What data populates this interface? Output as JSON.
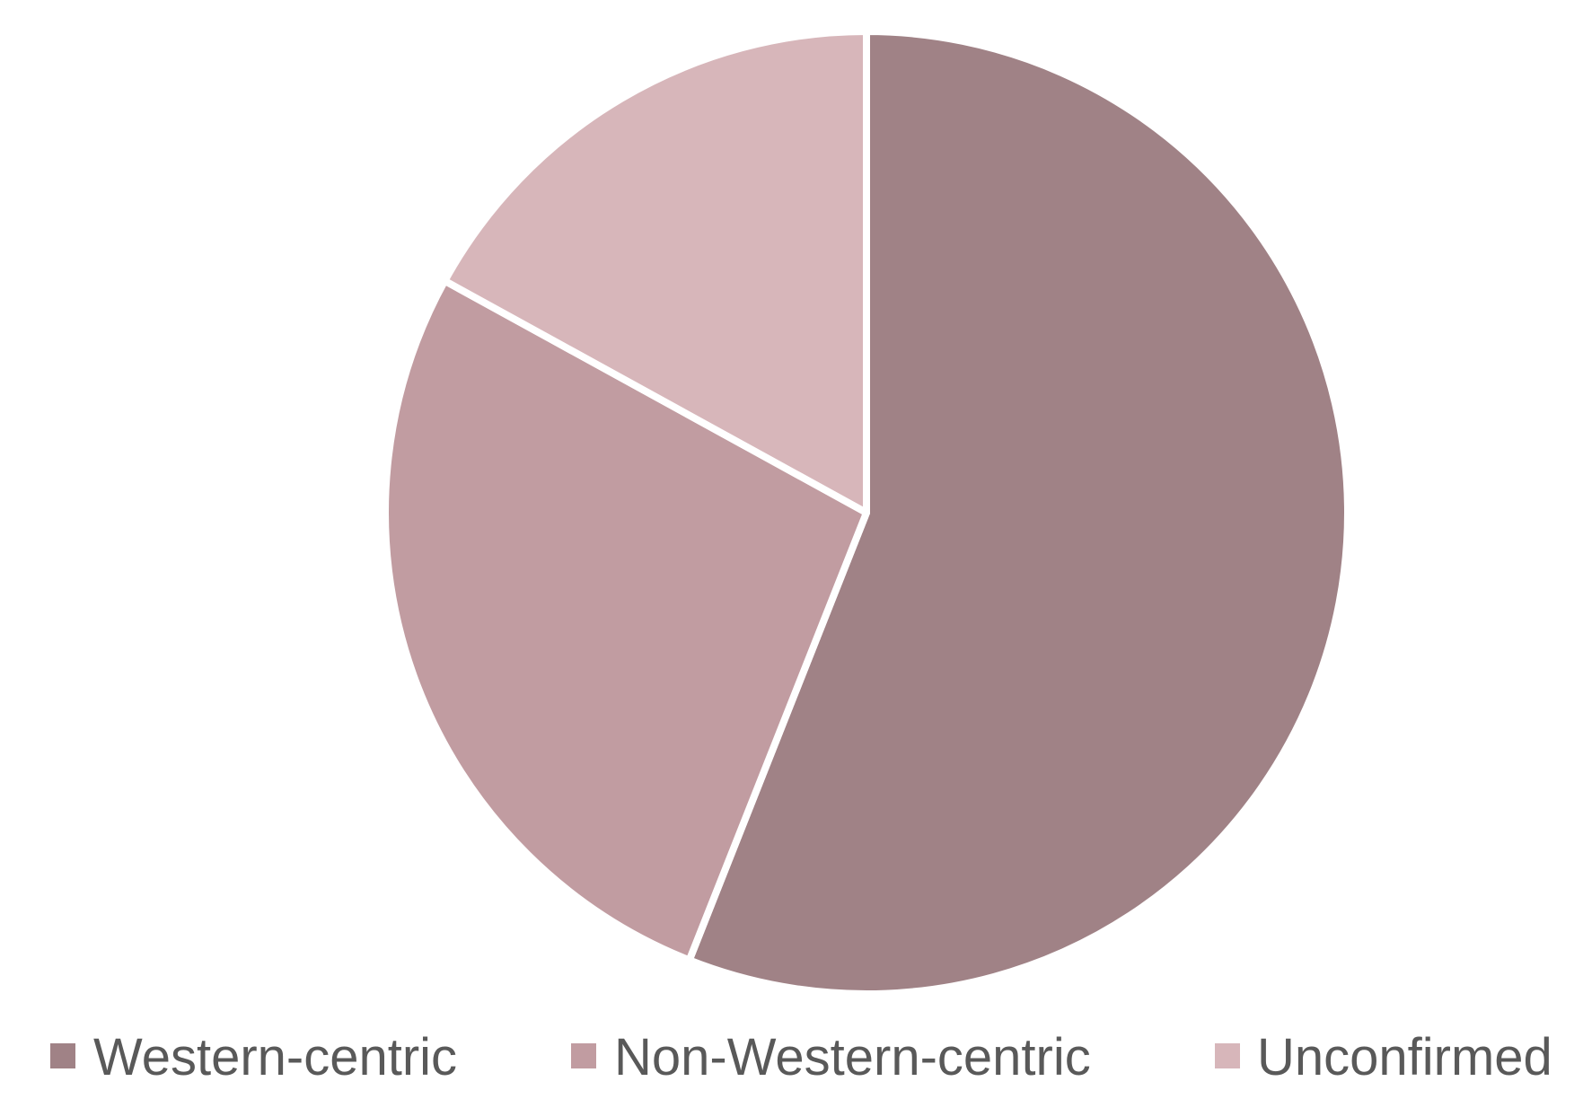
{
  "chart_data": {
    "type": "pie",
    "title": "",
    "slices": [
      {
        "label": "Western-centric",
        "value": 56,
        "color": "#a08286"
      },
      {
        "label": "Non-Western-centric",
        "value": 27,
        "color": "#c19ca1"
      },
      {
        "label": "Unconfirmed",
        "value": 17,
        "color": "#d7b6ba"
      }
    ],
    "start": "12 o'clock",
    "direction": "clockwise",
    "legend_position": "bottom"
  }
}
